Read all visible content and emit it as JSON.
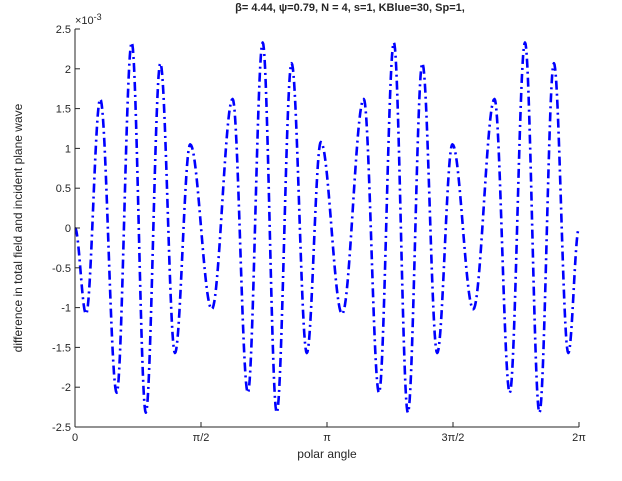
{
  "figure": {
    "title": "β= 4.44, ψ=0.79, N = 4, s=1, KBlue=30, Sp=1,"
  },
  "chart_data": {
    "type": "line",
    "title": "β= 4.44, ψ=0.79, N = 4, s=1, KBlue=30, Sp=1,",
    "xlabel": "polar angle",
    "ylabel": "difference in total field and incident plane wave",
    "xlim": [
      0,
      6.283185
    ],
    "ylim": [
      -0.0025,
      0.0025
    ],
    "y_exponent_label": "×10",
    "y_exponent_power": "-3",
    "x_ticks": [
      {
        "value": 0,
        "label": "0"
      },
      {
        "value": 1.570796,
        "label": "π/2"
      },
      {
        "value": 3.141593,
        "label": "π"
      },
      {
        "value": 4.712389,
        "label": "3π/2"
      },
      {
        "value": 6.283185,
        "label": "2π"
      }
    ],
    "y_ticks": [
      {
        "value": 0.0025,
        "label": "2.5"
      },
      {
        "value": 0.002,
        "label": "2"
      },
      {
        "value": 0.0015,
        "label": "1.5"
      },
      {
        "value": 0.001,
        "label": "1"
      },
      {
        "value": 0.0005,
        "label": "0.5"
      },
      {
        "value": 0,
        "label": "0"
      },
      {
        "value": -0.0005,
        "label": "-0.5"
      },
      {
        "value": -0.001,
        "label": "-1"
      },
      {
        "value": -0.0015,
        "label": "-1.5"
      },
      {
        "value": -0.002,
        "label": "-2"
      },
      {
        "value": -0.0025,
        "label": "-2.5"
      }
    ],
    "grid": false,
    "series": [
      {
        "color": "#0000ff",
        "line_style": "dash-dot",
        "points": [
          [
            0.0,
            0.0
          ],
          [
            0.138,
            -0.00108
          ],
          [
            0.315,
            0.00162
          ],
          [
            0.52,
            -0.00207
          ],
          [
            0.707,
            0.00233
          ],
          [
            0.883,
            -0.00232
          ],
          [
            1.064,
            0.00207
          ],
          [
            1.246,
            -0.00157
          ],
          [
            1.436,
            0.00105
          ],
          [
            1.705,
            -0.00102
          ],
          [
            1.965,
            0.00162
          ],
          [
            2.155,
            -0.00207
          ],
          [
            2.34,
            0.00233
          ],
          [
            2.515,
            -0.00232
          ],
          [
            2.7,
            0.00207
          ],
          [
            2.89,
            -0.00157
          ],
          [
            3.065,
            0.00108
          ],
          [
            3.33,
            -0.00108
          ],
          [
            3.6,
            0.00162
          ],
          [
            3.79,
            -0.00207
          ],
          [
            3.975,
            0.00233
          ],
          [
            4.15,
            -0.00232
          ],
          [
            4.33,
            0.00207
          ],
          [
            4.515,
            -0.00157
          ],
          [
            4.705,
            0.00105
          ],
          [
            4.965,
            -0.00102
          ],
          [
            5.23,
            0.00162
          ],
          [
            5.42,
            -0.00207
          ],
          [
            5.61,
            0.00233
          ],
          [
            5.79,
            -0.00232
          ],
          [
            5.97,
            0.00207
          ],
          [
            6.15,
            -0.00157
          ],
          [
            6.283185,
            0.0
          ]
        ]
      }
    ]
  }
}
